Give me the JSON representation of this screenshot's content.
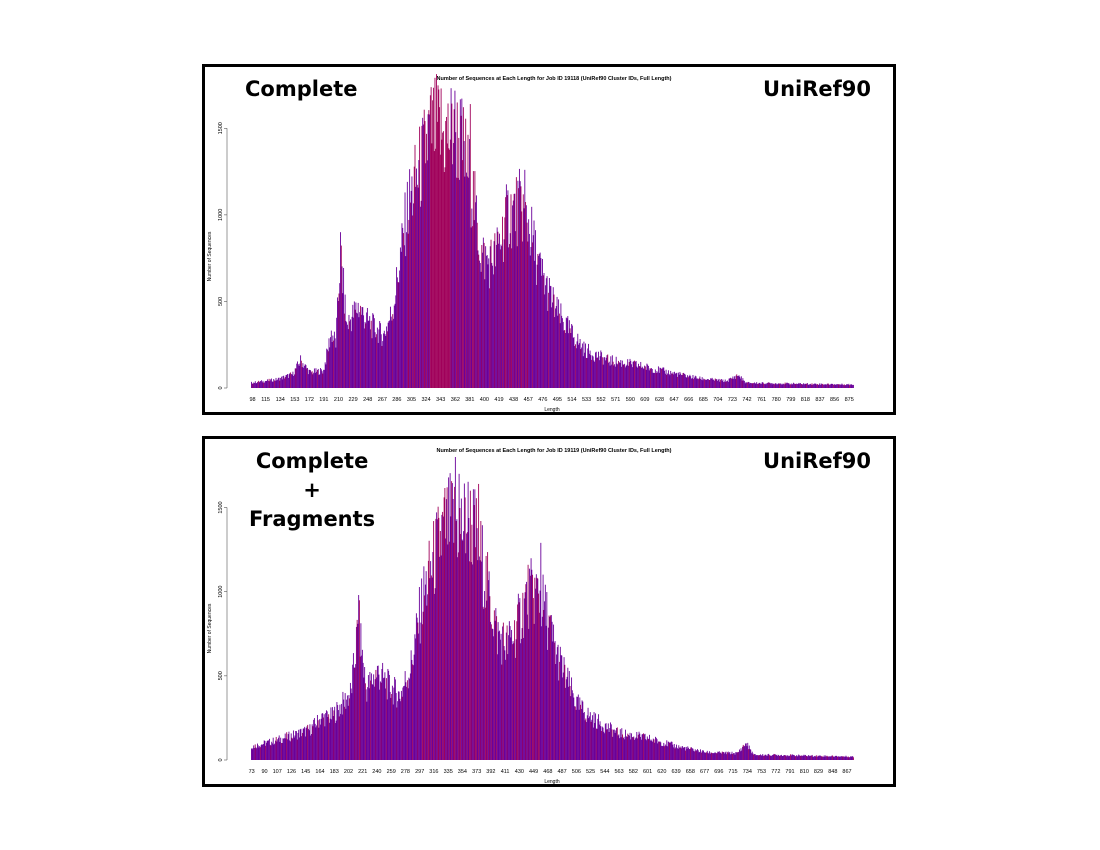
{
  "panels": [
    {
      "left_label_lines": [
        "Complete"
      ],
      "right_label": "UniRef90"
    },
    {
      "left_label_lines": [
        "Complete",
        "+",
        "Fragments"
      ],
      "right_label": "UniRef90"
    }
  ],
  "colors": {
    "bar_purple": "#6a0099",
    "bar_red": "#a0005a",
    "frame": "#000000"
  },
  "chart_data": [
    {
      "type": "bar",
      "title": "Number of Sequences at Each Length for Job ID 19118 (UniRef90 Cluster IDs, Full Length)",
      "xlabel": "Length",
      "ylabel": "Number of Sequences",
      "x_range": [
        96,
        880
      ],
      "ylim": [
        0,
        1750
      ],
      "y_ticks": [
        0,
        500,
        1000,
        1500
      ],
      "x_tick_labels": [
        98,
        115,
        134,
        153,
        172,
        191,
        210,
        229,
        248,
        267,
        286,
        305,
        324,
        343,
        362,
        381,
        400,
        419,
        438,
        457,
        476,
        495,
        514,
        533,
        552,
        571,
        590,
        609,
        628,
        647,
        666,
        685,
        704,
        723,
        742,
        761,
        780,
        799,
        818,
        837,
        856,
        875
      ],
      "profile": [
        [
          96,
          30
        ],
        [
          110,
          38
        ],
        [
          130,
          50
        ],
        [
          150,
          80
        ],
        [
          160,
          160
        ],
        [
          172,
          90
        ],
        [
          190,
          100
        ],
        [
          200,
          320
        ],
        [
          206,
          260
        ],
        [
          212,
          780
        ],
        [
          220,
          360
        ],
        [
          235,
          470
        ],
        [
          248,
          380
        ],
        [
          258,
          340
        ],
        [
          268,
          300
        ],
        [
          280,
          450
        ],
        [
          300,
          1050
        ],
        [
          318,
          1300
        ],
        [
          328,
          1480
        ],
        [
          338,
          1500
        ],
        [
          348,
          1440
        ],
        [
          360,
          1500
        ],
        [
          372,
          1380
        ],
        [
          385,
          1100
        ],
        [
          395,
          780
        ],
        [
          405,
          720
        ],
        [
          415,
          780
        ],
        [
          430,
          1000
        ],
        [
          448,
          1050
        ],
        [
          458,
          930
        ],
        [
          470,
          700
        ],
        [
          482,
          560
        ],
        [
          495,
          430
        ],
        [
          510,
          330
        ],
        [
          530,
          220
        ],
        [
          560,
          160
        ],
        [
          600,
          130
        ],
        [
          640,
          90
        ],
        [
          680,
          55
        ],
        [
          715,
          40
        ],
        [
          730,
          75
        ],
        [
          740,
          30
        ],
        [
          760,
          28
        ],
        [
          800,
          25
        ],
        [
          880,
          20
        ]
      ],
      "spikes": [
        [
          212,
          900
        ],
        [
          343,
          1730
        ],
        [
          381,
          1640
        ],
        [
          360,
          1610
        ],
        [
          452,
          1260
        ]
      ],
      "red_ranges": [
        [
          330,
          355
        ]
      ]
    },
    {
      "type": "bar",
      "title": "Number of Sequences at Each Length for Job ID 19119 (UniRef90 Cluster IDs, Full Length)",
      "xlabel": "Length",
      "ylabel": "Number of Sequences",
      "x_range": [
        72,
        875
      ],
      "ylim": [
        0,
        1800
      ],
      "y_ticks": [
        0,
        500,
        1000,
        1500
      ],
      "x_tick_labels": [
        73,
        90,
        107,
        126,
        145,
        164,
        183,
        202,
        221,
        240,
        259,
        278,
        297,
        316,
        335,
        354,
        373,
        392,
        411,
        430,
        449,
        468,
        487,
        506,
        525,
        544,
        563,
        582,
        601,
        620,
        639,
        658,
        677,
        696,
        715,
        734,
        753,
        772,
        791,
        810,
        829,
        848,
        867
      ],
      "profile": [
        [
          72,
          80
        ],
        [
          100,
          110
        ],
        [
          130,
          150
        ],
        [
          150,
          180
        ],
        [
          165,
          250
        ],
        [
          180,
          260
        ],
        [
          195,
          340
        ],
        [
          205,
          400
        ],
        [
          215,
          820
        ],
        [
          225,
          420
        ],
        [
          240,
          520
        ],
        [
          255,
          440
        ],
        [
          270,
          380
        ],
        [
          285,
          560
        ],
        [
          300,
          950
        ],
        [
          318,
          1230
        ],
        [
          330,
          1380
        ],
        [
          340,
          1420
        ],
        [
          352,
          1380
        ],
        [
          362,
          1440
        ],
        [
          374,
          1300
        ],
        [
          388,
          1000
        ],
        [
          400,
          750
        ],
        [
          412,
          680
        ],
        [
          424,
          760
        ],
        [
          440,
          980
        ],
        [
          455,
          1000
        ],
        [
          466,
          850
        ],
        [
          478,
          640
        ],
        [
          492,
          480
        ],
        [
          506,
          330
        ],
        [
          525,
          250
        ],
        [
          560,
          160
        ],
        [
          600,
          130
        ],
        [
          640,
          80
        ],
        [
          680,
          45
        ],
        [
          720,
          40
        ],
        [
          732,
          100
        ],
        [
          742,
          30
        ],
        [
          770,
          30
        ],
        [
          820,
          25
        ],
        [
          875,
          20
        ]
      ],
      "spikes": [
        [
          215,
          980
        ],
        [
          344,
          1800
        ],
        [
          349,
          1700
        ],
        [
          375,
          1640
        ],
        [
          458,
          1290
        ]
      ],
      "red_ranges": []
    }
  ]
}
